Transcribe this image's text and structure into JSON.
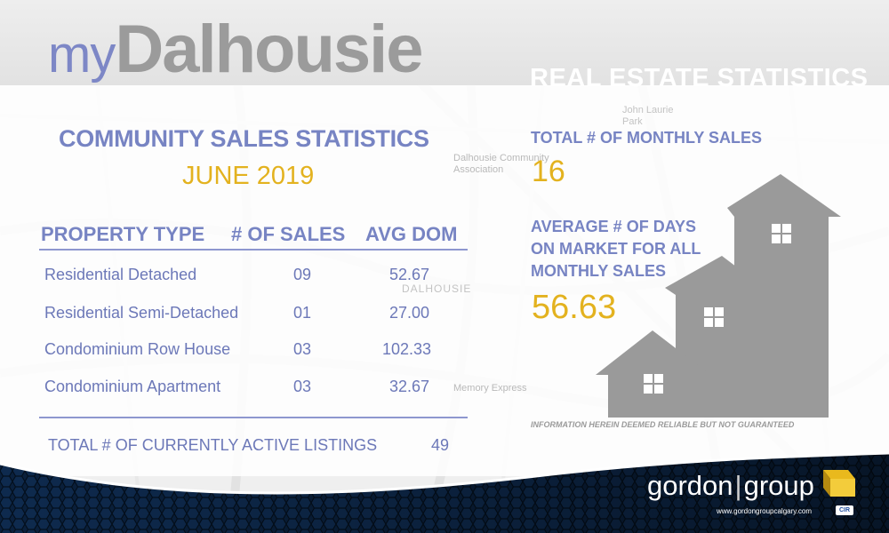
{
  "brand": {
    "prefix": "my",
    "community": "Dalhousie"
  },
  "tagline": "REAL ESTATE STATISTICS",
  "heading": "COMMUNITY SALES STATISTICS",
  "period": "JUNE 2019",
  "table": {
    "headers": [
      "PROPERTY TYPE",
      "# OF SALES",
      "AVG DOM"
    ],
    "rows": [
      {
        "type": "Residential Detached",
        "sales": "09",
        "avg_dom": "52.67"
      },
      {
        "type": "Residential Semi-Detached",
        "sales": "01",
        "avg_dom": "27.00"
      },
      {
        "type": "Condominium Row House",
        "sales": "03",
        "avg_dom": "102.33"
      },
      {
        "type": "Condominium Apartment",
        "sales": "03",
        "avg_dom": "32.67"
      }
    ],
    "active_listings_label": "TOTAL # OF CURRENTLY ACTIVE LISTINGS",
    "active_listings_value": "49"
  },
  "stats": {
    "monthly_sales_label": "TOTAL # OF MONTHLY SALES",
    "monthly_sales_value": "16",
    "avg_dom_label_lines": [
      "AVERAGE # OF DAYS",
      "ON MARKET FOR ALL",
      "MONTHLY SALES"
    ],
    "avg_dom_value": "56.63"
  },
  "disclaimer": "INFORMATION HEREIN DEEMED RELIABLE BUT NOT GUARANTEED",
  "map_labels": [
    "Dalhousie Community Association",
    "DALHOUSIE",
    "Memory Express",
    "John Laurie Park"
  ],
  "footer": {
    "logo_left": "gordon",
    "logo_right": "group",
    "website": "www.gordongroupcalgary.com",
    "badge": "CIR"
  },
  "colors": {
    "accent_blue": "#7784c3",
    "accent_gold": "#e3b21f",
    "house_gray": "#9a9a9a",
    "footer_navy": "#0b2444"
  }
}
